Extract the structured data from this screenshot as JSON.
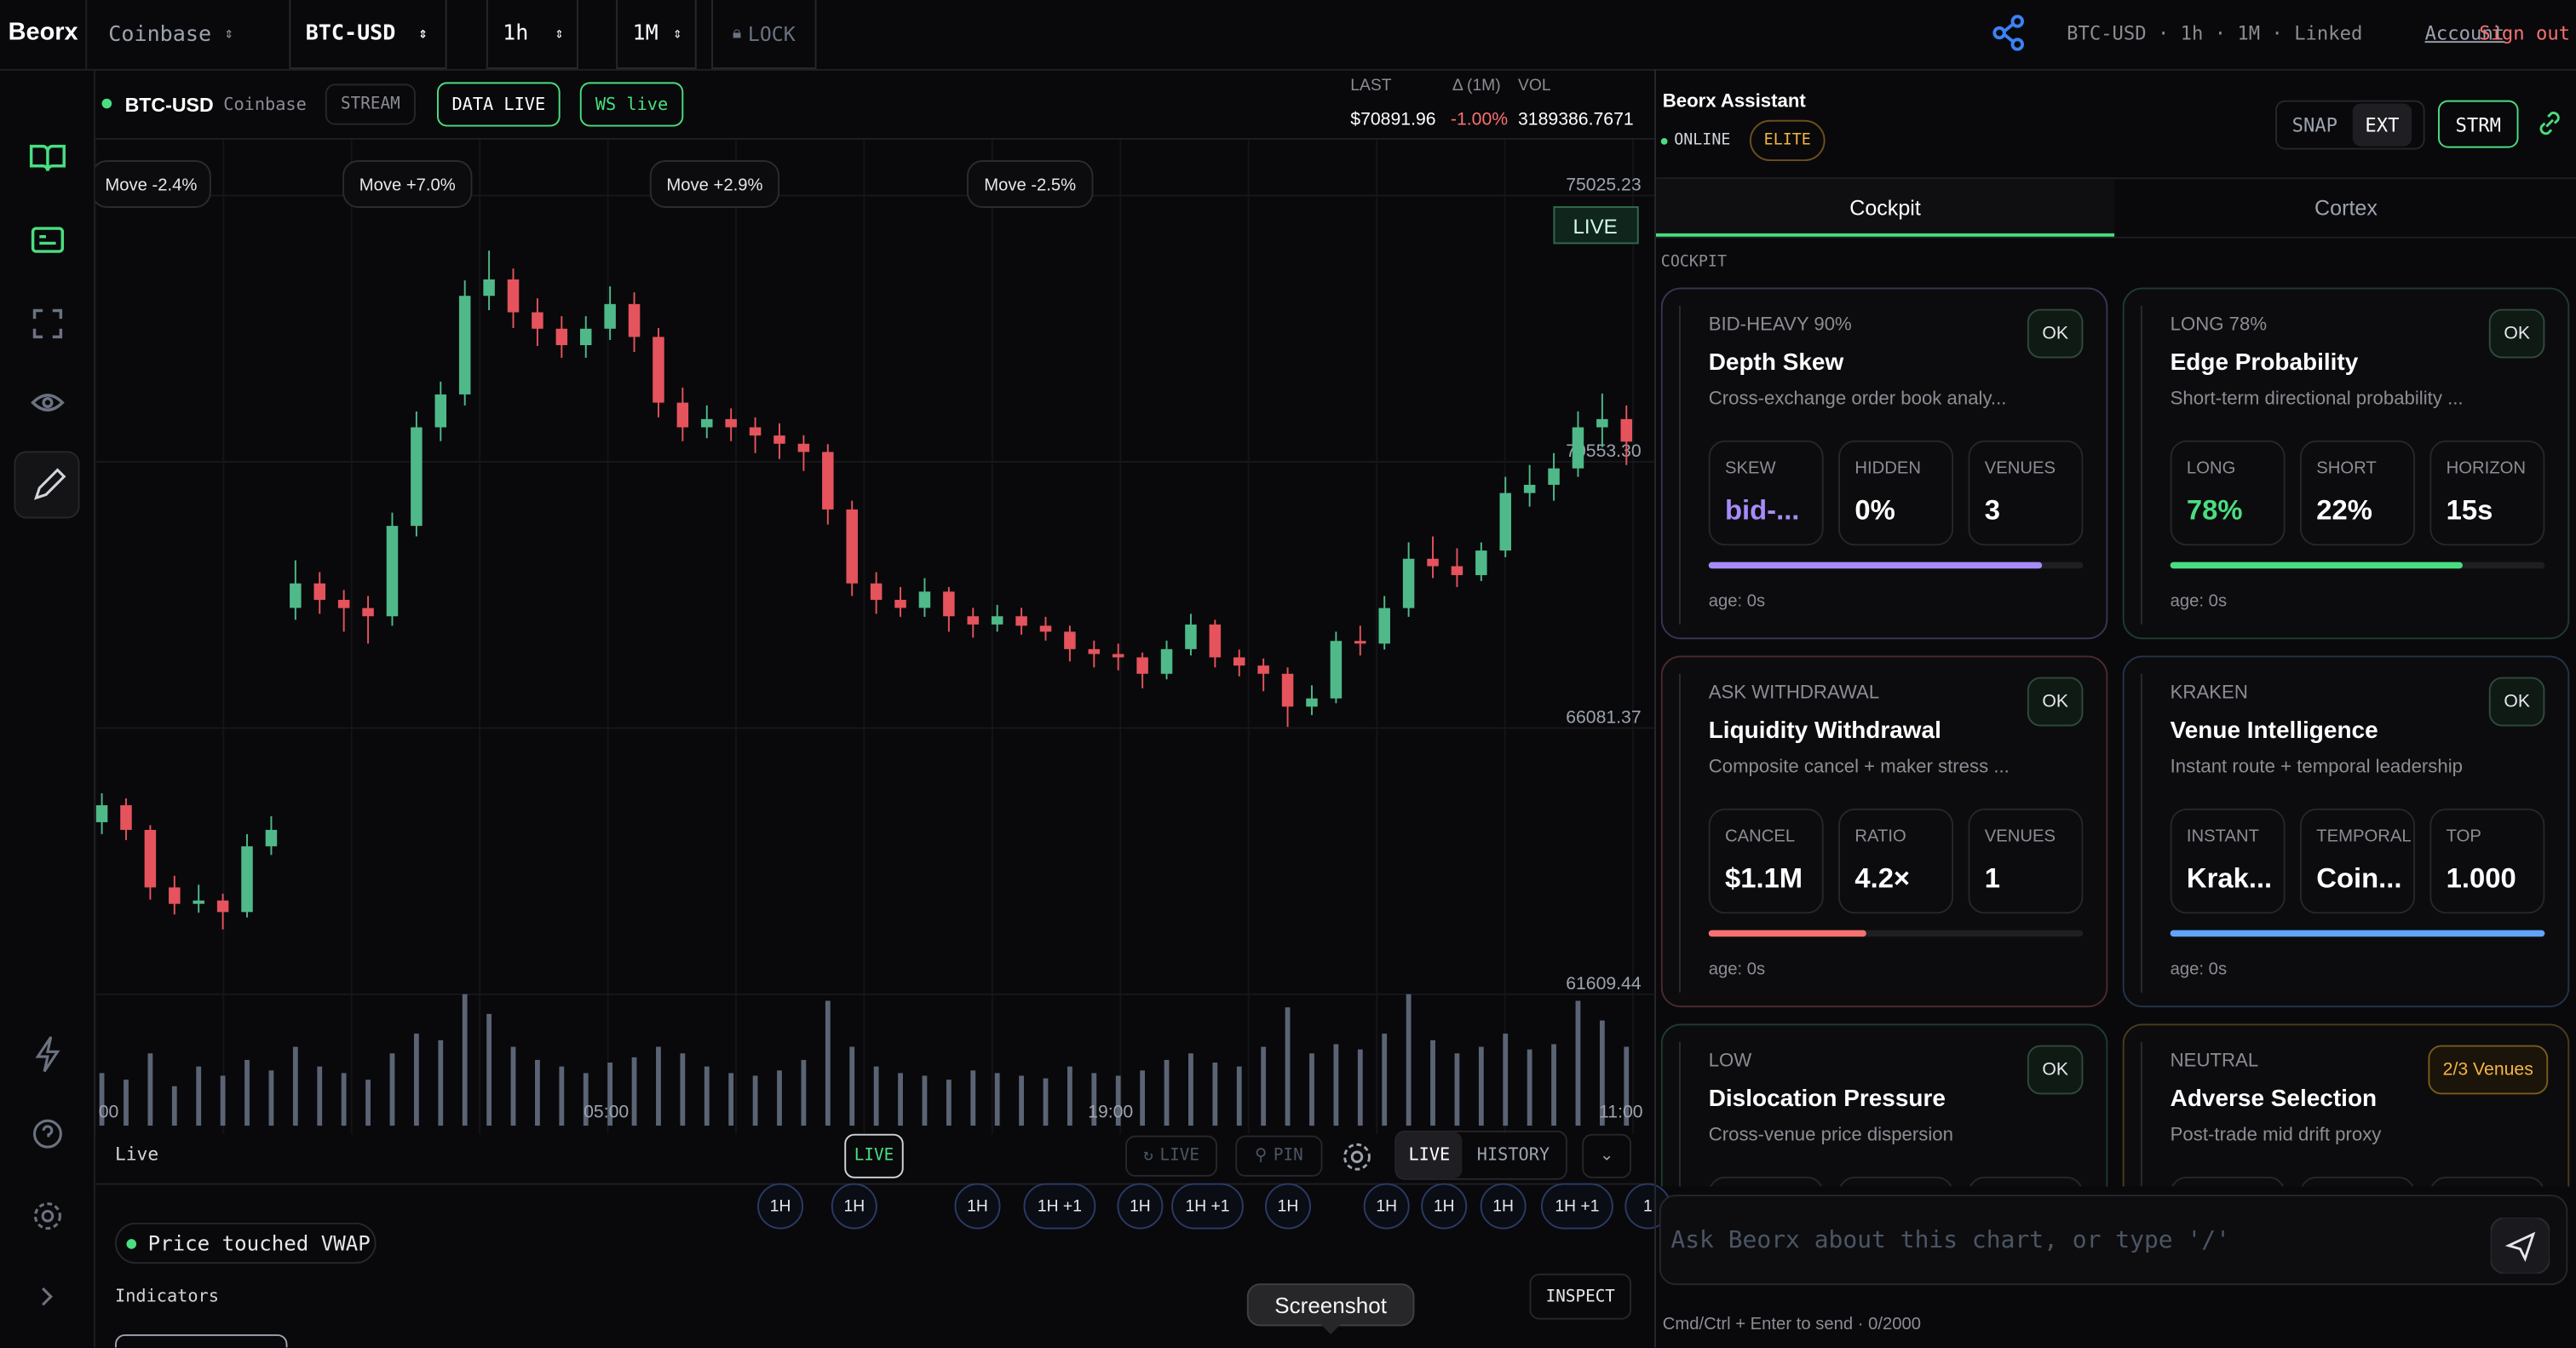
{
  "header": {
    "brand": "Beorx",
    "exchange": "Coinbase",
    "pair": "BTC-USD",
    "interval": "1h",
    "range": "1M",
    "lock": "LOCK",
    "status": "BTC-USD · 1h · 1M · Linked",
    "account": "Account",
    "sign_out": "Sign out"
  },
  "chart_header": {
    "symbol": "BTC-USD",
    "exchange": "Coinbase",
    "badges": [
      "STREAM",
      "DATA LIVE",
      "WS live"
    ],
    "stat_labels": [
      "LAST",
      "Δ (1M)",
      "VOL"
    ],
    "stat_values": [
      "$70891.96",
      "-1.00%",
      "3189386.7671"
    ]
  },
  "chart_data": {
    "type": "candlestick",
    "live_label": "LIVE",
    "annotations": [
      "Move -2.4%",
      "Move +7.0%",
      "Move +2.9%",
      "Move -2.5%"
    ],
    "x_labels": [
      "00",
      "05:00",
      "19:00",
      "11:00"
    ],
    "ylim": [
      59265,
      75964
    ],
    "yticks": [
      61609.44,
      66081.37,
      {
        "value": 70553.3,
        "label": "70553.30"
      },
      75025.23
    ],
    "up_color": "#4fb98a",
    "down_color": "#e5535c",
    "volume_color": "#5b6475",
    "candles": [
      [
        64500,
        64985,
        64300,
        64785
      ],
      [
        64785,
        64900,
        64200,
        64371
      ],
      [
        64371,
        64450,
        63200,
        63405
      ],
      [
        63405,
        63600,
        62950,
        63129
      ],
      [
        63129,
        63450,
        62980,
        63185
      ],
      [
        63185,
        63300,
        62700,
        62991
      ],
      [
        62991,
        64300,
        62900,
        64095
      ],
      [
        64095,
        64600,
        63950,
        64371
      ],
      [
        68100,
        68900,
        67900,
        68511
      ],
      [
        68511,
        68700,
        68000,
        68235
      ],
      [
        68235,
        68400,
        67700,
        68097
      ],
      [
        68097,
        68300,
        67500,
        67959
      ],
      [
        67959,
        69700,
        67800,
        69477
      ],
      [
        69477,
        71400,
        69300,
        71133
      ],
      [
        71133,
        71900,
        70900,
        71685
      ],
      [
        71685,
        73600,
        71500,
        73341
      ],
      [
        73341,
        74100,
        73100,
        73617
      ],
      [
        73617,
        73800,
        72800,
        73065
      ],
      [
        73065,
        73300,
        72500,
        72789
      ],
      [
        72789,
        73000,
        72300,
        72513
      ],
      [
        72513,
        73000,
        72300,
        72789
      ],
      [
        72789,
        73500,
        72600,
        73203
      ],
      [
        73203,
        73400,
        72400,
        72651
      ],
      [
        72651,
        72800,
        71300,
        71547
      ],
      [
        71547,
        71800,
        70900,
        71133
      ],
      [
        71133,
        71500,
        70950,
        71271
      ],
      [
        71271,
        71450,
        70900,
        71133
      ],
      [
        71133,
        71300,
        70700,
        70995
      ],
      [
        70995,
        71200,
        70600,
        70857
      ],
      [
        70857,
        71000,
        70400,
        70719
      ],
      [
        70719,
        70850,
        69500,
        69753
      ],
      [
        69753,
        69900,
        68300,
        68511
      ],
      [
        68511,
        68700,
        68000,
        68235
      ],
      [
        68235,
        68450,
        67950,
        68100
      ],
      [
        68100,
        68600,
        67950,
        68373
      ],
      [
        68373,
        68450,
        67700,
        67959
      ],
      [
        67959,
        68100,
        67600,
        67821
      ],
      [
        67821,
        68150,
        67700,
        67959
      ],
      [
        67959,
        68100,
        67650,
        67800
      ],
      [
        67800,
        67950,
        67550,
        67700
      ],
      [
        67700,
        67800,
        67200,
        67407
      ],
      [
        67407,
        67550,
        67100,
        67325
      ],
      [
        67325,
        67500,
        67050,
        67269
      ],
      [
        67269,
        67350,
        66750,
        66993
      ],
      [
        66993,
        67550,
        66900,
        67407
      ],
      [
        67407,
        68000,
        67300,
        67821
      ],
      [
        67821,
        67900,
        67100,
        67269
      ],
      [
        67269,
        67400,
        66950,
        67131
      ],
      [
        67131,
        67250,
        66700,
        66993
      ],
      [
        66993,
        67100,
        66100,
        66441
      ],
      [
        66441,
        66800,
        66300,
        66579
      ],
      [
        66579,
        67700,
        66500,
        67545
      ],
      [
        67545,
        67800,
        67300,
        67500
      ],
      [
        67500,
        68300,
        67400,
        68097
      ],
      [
        68097,
        69200,
        67950,
        68925
      ],
      [
        68925,
        69300,
        68600,
        68800
      ],
      [
        68800,
        69100,
        68450,
        68650
      ],
      [
        68650,
        69200,
        68550,
        69063
      ],
      [
        69063,
        70300,
        68950,
        70029
      ],
      [
        70029,
        70500,
        69800,
        70167
      ],
      [
        70167,
        70700,
        69900,
        70443
      ],
      [
        70443,
        71400,
        70300,
        71133
      ],
      [
        71133,
        71700,
        70800,
        71271
      ],
      [
        71271,
        71500,
        70500,
        70891.96
      ]
    ],
    "volumes": [
      40,
      35,
      55,
      30,
      45,
      38,
      50,
      42,
      60,
      45,
      40,
      35,
      55,
      70,
      65,
      100,
      85,
      60,
      50,
      45,
      40,
      48,
      52,
      60,
      55,
      45,
      40,
      38,
      42,
      50,
      95,
      60,
      45,
      40,
      38,
      35,
      42,
      40,
      38,
      36,
      45,
      40,
      38,
      42,
      50,
      55,
      48,
      45,
      60,
      90,
      55,
      62,
      58,
      70,
      100,
      65,
      55,
      60,
      70,
      58,
      62,
      95,
      80,
      60
    ]
  },
  "toolbar": {
    "mode": "Live",
    "live": "LIVE",
    "live_disabled": "LIVE",
    "pin": "PIN",
    "seg_live": "LIVE",
    "seg_history": "HISTORY"
  },
  "chips": [
    "1H",
    "1H",
    "1H",
    "1H +1",
    "1H",
    "1H +1",
    "1H",
    "1H",
    "1H",
    "1H",
    "1H +1",
    "1"
  ],
  "bottom": {
    "alert": "Price touched VWAP",
    "indicators": "Indicators",
    "inspect": "INSPECT",
    "tooltip": "Screenshot"
  },
  "assistant": {
    "title": "Beorx Assistant",
    "status": "ONLINE",
    "tier": "ELITE",
    "buttons": [
      "SNAP",
      "EXT",
      "STRM"
    ],
    "tabs": [
      "Cockpit",
      "Cortex"
    ],
    "section": "COCKPIT",
    "cards": [
      {
        "tag": "BID-HEAVY 90%",
        "title": "Depth Skew",
        "desc": "Cross-exchange order book analy...",
        "badge": "OK",
        "color": "#a78bfa",
        "metrics": [
          {
            "label": "SKEW",
            "value": "bid-..."
          },
          {
            "label": "HIDDEN",
            "value": "0%"
          },
          {
            "label": "VENUES",
            "value": "3"
          }
        ],
        "progress": 89,
        "age": "age: 0s"
      },
      {
        "tag": "LONG 78%",
        "title": "Edge Probability",
        "desc": "Short-term directional probability ...",
        "badge": "OK",
        "color": "#4ade80",
        "metrics": [
          {
            "label": "LONG",
            "value": "78%"
          },
          {
            "label": "SHORT",
            "value": "22%"
          },
          {
            "label": "HORIZON",
            "value": "15s"
          }
        ],
        "progress": 78,
        "age": "age: 0s"
      },
      {
        "tag": "ASK WITHDRAWAL",
        "title": "Liquidity Withdrawal",
        "desc": "Composite cancel + maker stress ...",
        "badge": "OK",
        "color": "#f87171",
        "metrics": [
          {
            "label": "CANCEL",
            "value": "$1.1M"
          },
          {
            "label": "RATIO",
            "value": "4.2×"
          },
          {
            "label": "VENUES",
            "value": "1"
          }
        ],
        "progress": 42,
        "age": "age: 0s"
      },
      {
        "tag": "KRAKEN",
        "title": "Venue Intelligence",
        "desc": "Instant route + temporal leadership",
        "badge": "OK",
        "color": "#60a5fa",
        "metrics": [
          {
            "label": "INSTANT",
            "value": "Krak..."
          },
          {
            "label": "TEMPORAL",
            "value": "Coin..."
          },
          {
            "label": "TOP",
            "value": "1.000"
          }
        ],
        "progress": 100,
        "age": "age: 0s"
      },
      {
        "tag": "LOW",
        "title": "Dislocation Pressure",
        "desc": "Cross-venue price dispersion",
        "badge": "OK",
        "color": "#4ade80"
      },
      {
        "tag": "NEUTRAL",
        "title": "Adverse Selection",
        "desc": "Post-trade mid drift proxy",
        "badge": "2/3 Venues",
        "color": "#f5b544"
      }
    ],
    "placeholder": "Ask Beorx about this chart, or type '/'",
    "hint": "Cmd/Ctrl + Enter to send · 0/2000"
  }
}
